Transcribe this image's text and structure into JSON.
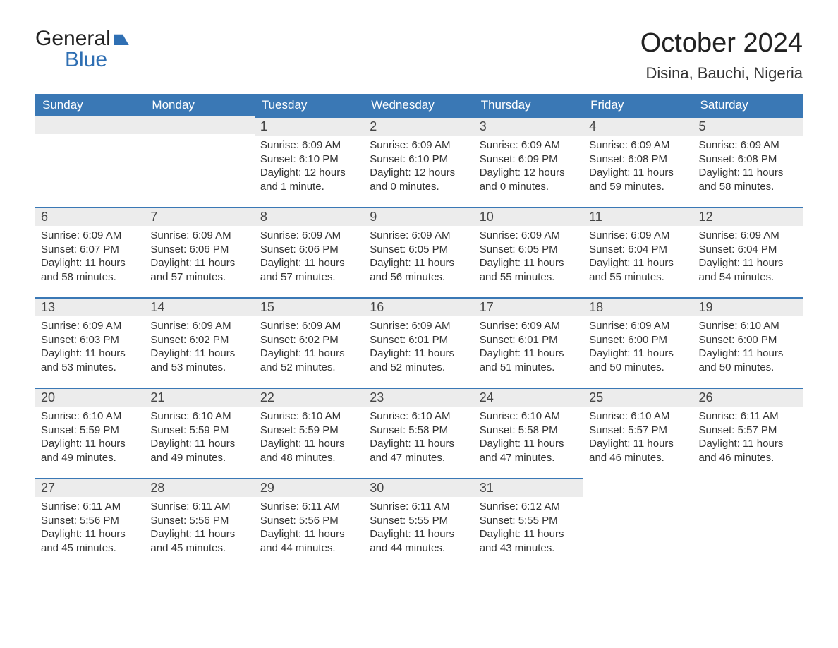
{
  "logo": {
    "line1": "General",
    "line2": "Blue"
  },
  "month_title": "October 2024",
  "location": "Disina, Bauchi, Nigeria",
  "colors": {
    "header_bg": "#3a78b5",
    "header_text": "#ffffff",
    "bar_bg": "#ececec",
    "bar_border": "#3a78b5",
    "text": "#333333",
    "logo_blue": "#2f6fb3",
    "background": "#ffffff"
  },
  "fonts": {
    "title_size_pt": 28,
    "location_size_pt": 16,
    "th_size_pt": 13,
    "daynum_size_pt": 14,
    "body_size_pt": 11,
    "family": "Arial"
  },
  "weekdays": [
    "Sunday",
    "Monday",
    "Tuesday",
    "Wednesday",
    "Thursday",
    "Friday",
    "Saturday"
  ],
  "weeks": [
    [
      null,
      null,
      {
        "n": "1",
        "sunrise": "Sunrise: 6:09 AM",
        "sunset": "Sunset: 6:10 PM",
        "day": "Daylight: 12 hours and 1 minute."
      },
      {
        "n": "2",
        "sunrise": "Sunrise: 6:09 AM",
        "sunset": "Sunset: 6:10 PM",
        "day": "Daylight: 12 hours and 0 minutes."
      },
      {
        "n": "3",
        "sunrise": "Sunrise: 6:09 AM",
        "sunset": "Sunset: 6:09 PM",
        "day": "Daylight: 12 hours and 0 minutes."
      },
      {
        "n": "4",
        "sunrise": "Sunrise: 6:09 AM",
        "sunset": "Sunset: 6:08 PM",
        "day": "Daylight: 11 hours and 59 minutes."
      },
      {
        "n": "5",
        "sunrise": "Sunrise: 6:09 AM",
        "sunset": "Sunset: 6:08 PM",
        "day": "Daylight: 11 hours and 58 minutes."
      }
    ],
    [
      {
        "n": "6",
        "sunrise": "Sunrise: 6:09 AM",
        "sunset": "Sunset: 6:07 PM",
        "day": "Daylight: 11 hours and 58 minutes."
      },
      {
        "n": "7",
        "sunrise": "Sunrise: 6:09 AM",
        "sunset": "Sunset: 6:06 PM",
        "day": "Daylight: 11 hours and 57 minutes."
      },
      {
        "n": "8",
        "sunrise": "Sunrise: 6:09 AM",
        "sunset": "Sunset: 6:06 PM",
        "day": "Daylight: 11 hours and 57 minutes."
      },
      {
        "n": "9",
        "sunrise": "Sunrise: 6:09 AM",
        "sunset": "Sunset: 6:05 PM",
        "day": "Daylight: 11 hours and 56 minutes."
      },
      {
        "n": "10",
        "sunrise": "Sunrise: 6:09 AM",
        "sunset": "Sunset: 6:05 PM",
        "day": "Daylight: 11 hours and 55 minutes."
      },
      {
        "n": "11",
        "sunrise": "Sunrise: 6:09 AM",
        "sunset": "Sunset: 6:04 PM",
        "day": "Daylight: 11 hours and 55 minutes."
      },
      {
        "n": "12",
        "sunrise": "Sunrise: 6:09 AM",
        "sunset": "Sunset: 6:04 PM",
        "day": "Daylight: 11 hours and 54 minutes."
      }
    ],
    [
      {
        "n": "13",
        "sunrise": "Sunrise: 6:09 AM",
        "sunset": "Sunset: 6:03 PM",
        "day": "Daylight: 11 hours and 53 minutes."
      },
      {
        "n": "14",
        "sunrise": "Sunrise: 6:09 AM",
        "sunset": "Sunset: 6:02 PM",
        "day": "Daylight: 11 hours and 53 minutes."
      },
      {
        "n": "15",
        "sunrise": "Sunrise: 6:09 AM",
        "sunset": "Sunset: 6:02 PM",
        "day": "Daylight: 11 hours and 52 minutes."
      },
      {
        "n": "16",
        "sunrise": "Sunrise: 6:09 AM",
        "sunset": "Sunset: 6:01 PM",
        "day": "Daylight: 11 hours and 52 minutes."
      },
      {
        "n": "17",
        "sunrise": "Sunrise: 6:09 AM",
        "sunset": "Sunset: 6:01 PM",
        "day": "Daylight: 11 hours and 51 minutes."
      },
      {
        "n": "18",
        "sunrise": "Sunrise: 6:09 AM",
        "sunset": "Sunset: 6:00 PM",
        "day": "Daylight: 11 hours and 50 minutes."
      },
      {
        "n": "19",
        "sunrise": "Sunrise: 6:10 AM",
        "sunset": "Sunset: 6:00 PM",
        "day": "Daylight: 11 hours and 50 minutes."
      }
    ],
    [
      {
        "n": "20",
        "sunrise": "Sunrise: 6:10 AM",
        "sunset": "Sunset: 5:59 PM",
        "day": "Daylight: 11 hours and 49 minutes."
      },
      {
        "n": "21",
        "sunrise": "Sunrise: 6:10 AM",
        "sunset": "Sunset: 5:59 PM",
        "day": "Daylight: 11 hours and 49 minutes."
      },
      {
        "n": "22",
        "sunrise": "Sunrise: 6:10 AM",
        "sunset": "Sunset: 5:59 PM",
        "day": "Daylight: 11 hours and 48 minutes."
      },
      {
        "n": "23",
        "sunrise": "Sunrise: 6:10 AM",
        "sunset": "Sunset: 5:58 PM",
        "day": "Daylight: 11 hours and 47 minutes."
      },
      {
        "n": "24",
        "sunrise": "Sunrise: 6:10 AM",
        "sunset": "Sunset: 5:58 PM",
        "day": "Daylight: 11 hours and 47 minutes."
      },
      {
        "n": "25",
        "sunrise": "Sunrise: 6:10 AM",
        "sunset": "Sunset: 5:57 PM",
        "day": "Daylight: 11 hours and 46 minutes."
      },
      {
        "n": "26",
        "sunrise": "Sunrise: 6:11 AM",
        "sunset": "Sunset: 5:57 PM",
        "day": "Daylight: 11 hours and 46 minutes."
      }
    ],
    [
      {
        "n": "27",
        "sunrise": "Sunrise: 6:11 AM",
        "sunset": "Sunset: 5:56 PM",
        "day": "Daylight: 11 hours and 45 minutes."
      },
      {
        "n": "28",
        "sunrise": "Sunrise: 6:11 AM",
        "sunset": "Sunset: 5:56 PM",
        "day": "Daylight: 11 hours and 45 minutes."
      },
      {
        "n": "29",
        "sunrise": "Sunrise: 6:11 AM",
        "sunset": "Sunset: 5:56 PM",
        "day": "Daylight: 11 hours and 44 minutes."
      },
      {
        "n": "30",
        "sunrise": "Sunrise: 6:11 AM",
        "sunset": "Sunset: 5:55 PM",
        "day": "Daylight: 11 hours and 44 minutes."
      },
      {
        "n": "31",
        "sunrise": "Sunrise: 6:12 AM",
        "sunset": "Sunset: 5:55 PM",
        "day": "Daylight: 11 hours and 43 minutes."
      },
      null,
      null
    ]
  ]
}
